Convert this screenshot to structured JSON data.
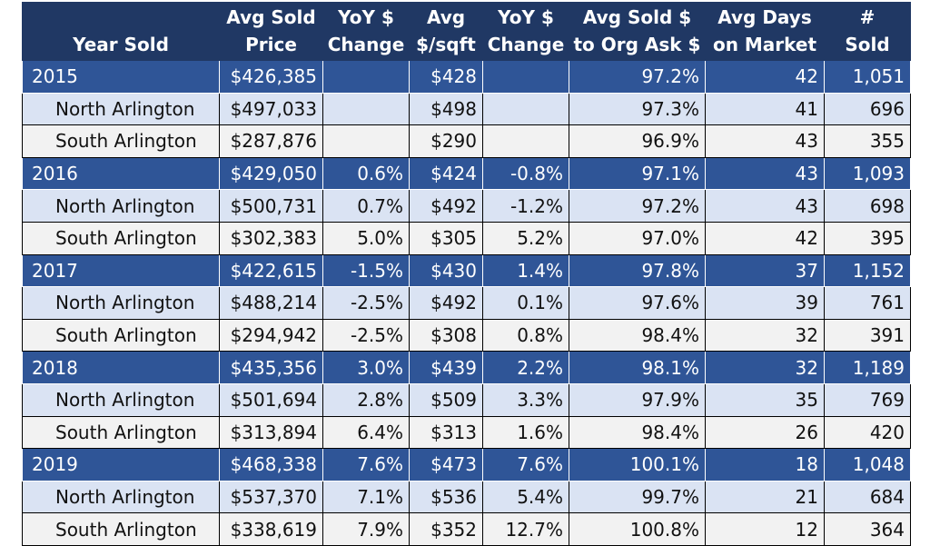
{
  "chart_data": {
    "type": "table",
    "columns": [
      "Year Sold",
      "Avg Sold\nPrice",
      "YoY $\nChange",
      "Avg\n$/sqft",
      "YoY $\nChange",
      "Avg Sold $\nto Org Ask $",
      "Avg Days\non Market",
      "#\nSold"
    ],
    "rows": [
      {
        "kind": "year",
        "cells": [
          "2015",
          "$426,385",
          "",
          "$428",
          "",
          "97.2%",
          "42",
          "1,051"
        ]
      },
      {
        "kind": "north",
        "cells": [
          "North Arlington",
          "$497,033",
          "",
          "$498",
          "",
          "97.3%",
          "41",
          "696"
        ]
      },
      {
        "kind": "south",
        "cells": [
          "South Arlington",
          "$287,876",
          "",
          "$290",
          "",
          "96.9%",
          "43",
          "355"
        ]
      },
      {
        "kind": "year",
        "cells": [
          "2016",
          "$429,050",
          "0.6%",
          "$424",
          "-0.8%",
          "97.1%",
          "43",
          "1,093"
        ]
      },
      {
        "kind": "north",
        "cells": [
          "North Arlington",
          "$500,731",
          "0.7%",
          "$492",
          "-1.2%",
          "97.2%",
          "43",
          "698"
        ]
      },
      {
        "kind": "south",
        "cells": [
          "South Arlington",
          "$302,383",
          "5.0%",
          "$305",
          "5.2%",
          "97.0%",
          "42",
          "395"
        ]
      },
      {
        "kind": "year",
        "cells": [
          "2017",
          "$422,615",
          "-1.5%",
          "$430",
          "1.4%",
          "97.8%",
          "37",
          "1,152"
        ]
      },
      {
        "kind": "north",
        "cells": [
          "North Arlington",
          "$488,214",
          "-2.5%",
          "$492",
          "0.1%",
          "97.6%",
          "39",
          "761"
        ]
      },
      {
        "kind": "south",
        "cells": [
          "South Arlington",
          "$294,942",
          "-2.5%",
          "$308",
          "0.8%",
          "98.4%",
          "32",
          "391"
        ]
      },
      {
        "kind": "year",
        "cells": [
          "2018",
          "$435,356",
          "3.0%",
          "$439",
          "2.2%",
          "98.1%",
          "32",
          "1,189"
        ]
      },
      {
        "kind": "north",
        "cells": [
          "North Arlington",
          "$501,694",
          "2.8%",
          "$509",
          "3.3%",
          "97.9%",
          "35",
          "769"
        ]
      },
      {
        "kind": "south",
        "cells": [
          "South Arlington",
          "$313,894",
          "6.4%",
          "$313",
          "1.6%",
          "98.4%",
          "26",
          "420"
        ]
      },
      {
        "kind": "year",
        "cells": [
          "2019",
          "$468,338",
          "7.6%",
          "$473",
          "7.6%",
          "100.1%",
          "18",
          "1,048"
        ]
      },
      {
        "kind": "north",
        "cells": [
          "North Arlington",
          "$537,370",
          "7.1%",
          "$536",
          "5.4%",
          "99.7%",
          "21",
          "684"
        ]
      },
      {
        "kind": "south",
        "cells": [
          "South Arlington",
          "$338,619",
          "7.9%",
          "$352",
          "12.7%",
          "100.8%",
          "12",
          "364"
        ]
      }
    ]
  },
  "colors": {
    "header_bg": "#203864",
    "year_row_bg": "#2f5597",
    "north_row_bg": "#dae3f3",
    "south_row_bg": "#f2f2f2"
  }
}
